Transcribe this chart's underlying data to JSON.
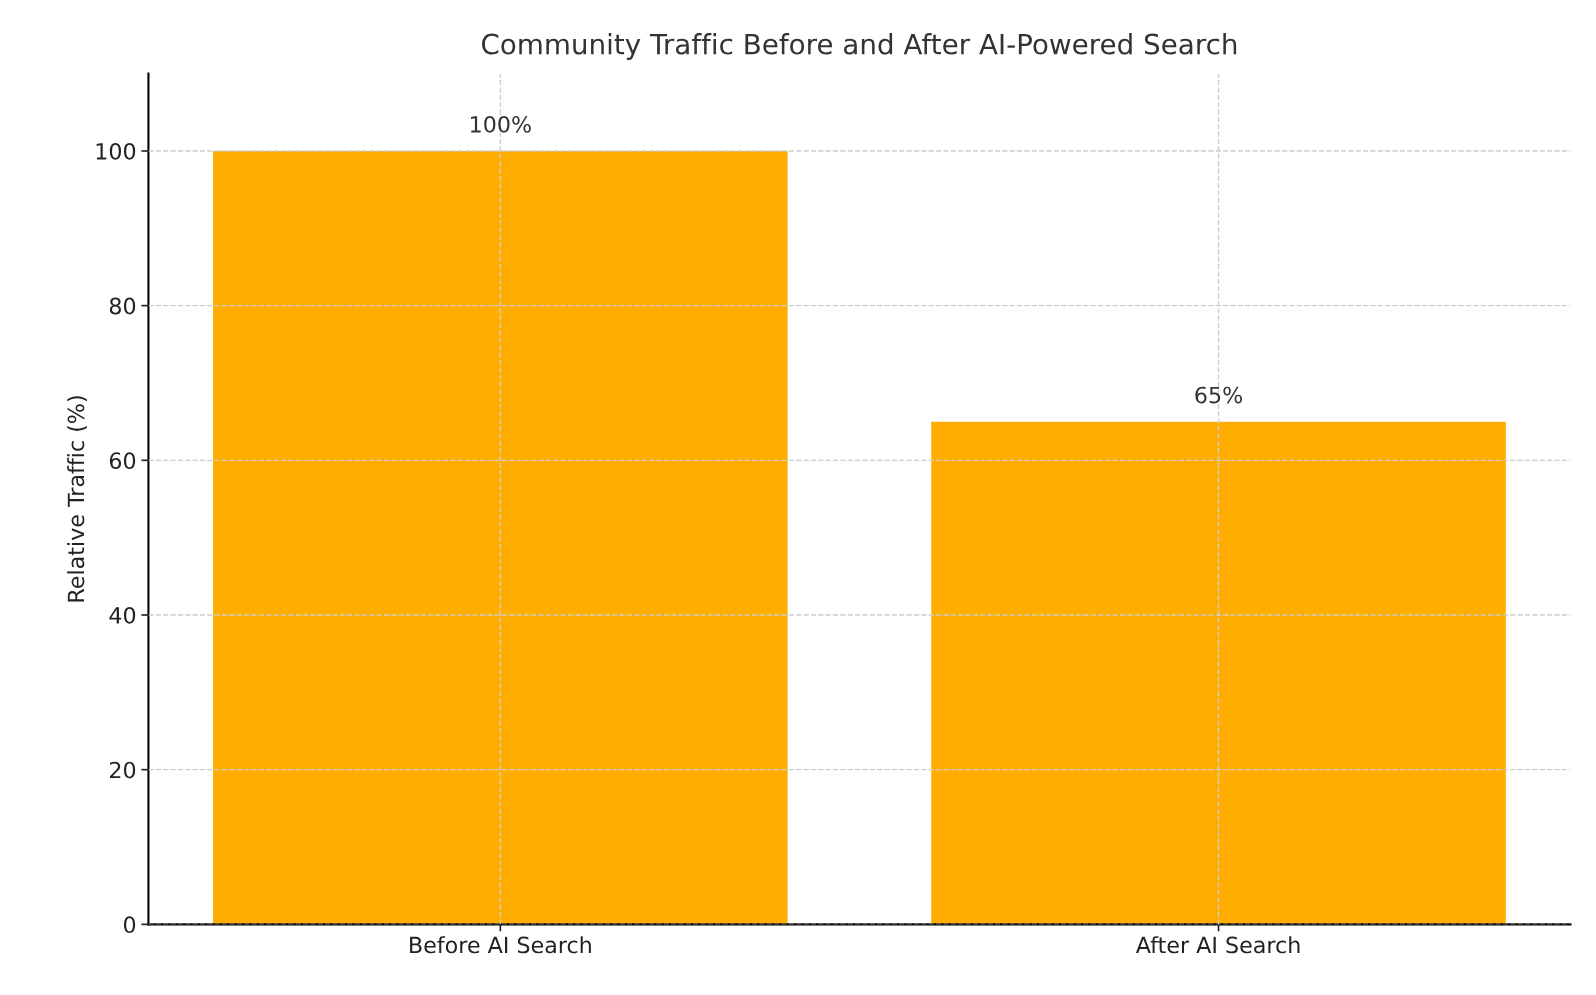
{
  "chart_data": {
    "type": "bar",
    "title": "Community Traffic Before and After AI-Powered Search",
    "ylabel": "Relative Traffic (%)",
    "categories": [
      "Before AI Search",
      "After AI Search"
    ],
    "values": [
      100,
      65
    ],
    "color": "#ffae00",
    "value_labels": [
      "100%",
      "65%"
    ],
    "ylim": [
      0,
      110
    ],
    "yticks": [
      0,
      20,
      40,
      60,
      80,
      100
    ],
    "grid": true
  }
}
